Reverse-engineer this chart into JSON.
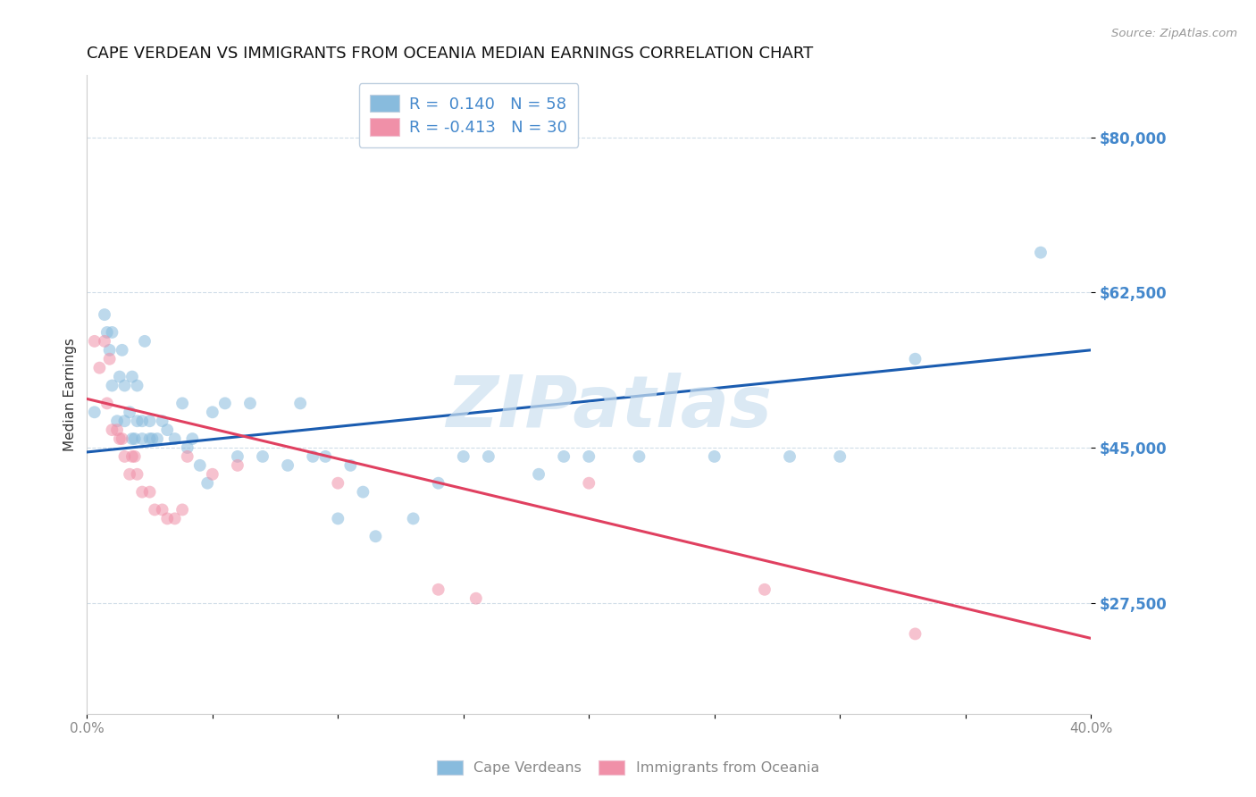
{
  "title": "CAPE VERDEAN VS IMMIGRANTS FROM OCEANIA MEDIAN EARNINGS CORRELATION CHART",
  "source_text": "Source: ZipAtlas.com",
  "ylabel": "Median Earnings",
  "x_min": 0.0,
  "x_max": 0.4,
  "y_min": 15000,
  "y_max": 87000,
  "yticks": [
    27500,
    45000,
    62500,
    80000
  ],
  "ytick_labels": [
    "$27,500",
    "$45,000",
    "$62,500",
    "$80,000"
  ],
  "xticks": [
    0.0,
    0.05,
    0.1,
    0.15,
    0.2,
    0.25,
    0.3,
    0.35,
    0.4
  ],
  "xtick_labels": [
    "0.0%",
    "",
    "",
    "",
    "",
    "",
    "",
    "",
    "40.0%"
  ],
  "legend1_label1": "R =  0.140   N = 58",
  "legend1_label2": "R = -0.413   N = 30",
  "blue_scatter_x": [
    0.003,
    0.007,
    0.008,
    0.009,
    0.01,
    0.01,
    0.012,
    0.013,
    0.014,
    0.015,
    0.015,
    0.017,
    0.018,
    0.018,
    0.019,
    0.02,
    0.02,
    0.022,
    0.022,
    0.023,
    0.025,
    0.025,
    0.026,
    0.028,
    0.03,
    0.032,
    0.035,
    0.038,
    0.04,
    0.042,
    0.045,
    0.048,
    0.05,
    0.055,
    0.06,
    0.065,
    0.07,
    0.08,
    0.085,
    0.09,
    0.095,
    0.1,
    0.105,
    0.11,
    0.115,
    0.13,
    0.14,
    0.15,
    0.16,
    0.18,
    0.19,
    0.2,
    0.22,
    0.25,
    0.28,
    0.3,
    0.33,
    0.38
  ],
  "blue_scatter_y": [
    49000,
    60000,
    58000,
    56000,
    52000,
    58000,
    48000,
    53000,
    56000,
    52000,
    48000,
    49000,
    46000,
    53000,
    46000,
    52000,
    48000,
    46000,
    48000,
    57000,
    46000,
    48000,
    46000,
    46000,
    48000,
    47000,
    46000,
    50000,
    45000,
    46000,
    43000,
    41000,
    49000,
    50000,
    44000,
    50000,
    44000,
    43000,
    50000,
    44000,
    44000,
    37000,
    43000,
    40000,
    35000,
    37000,
    41000,
    44000,
    44000,
    42000,
    44000,
    44000,
    44000,
    44000,
    44000,
    44000,
    55000,
    67000
  ],
  "pink_scatter_x": [
    0.003,
    0.005,
    0.007,
    0.008,
    0.009,
    0.01,
    0.012,
    0.013,
    0.014,
    0.015,
    0.017,
    0.018,
    0.019,
    0.02,
    0.022,
    0.025,
    0.027,
    0.03,
    0.032,
    0.035,
    0.038,
    0.04,
    0.05,
    0.06,
    0.1,
    0.14,
    0.155,
    0.2,
    0.27,
    0.33
  ],
  "pink_scatter_y": [
    57000,
    54000,
    57000,
    50000,
    55000,
    47000,
    47000,
    46000,
    46000,
    44000,
    42000,
    44000,
    44000,
    42000,
    40000,
    40000,
    38000,
    38000,
    37000,
    37000,
    38000,
    44000,
    42000,
    43000,
    41000,
    29000,
    28000,
    41000,
    29000,
    24000
  ],
  "blue_line_x": [
    0.0,
    0.4
  ],
  "blue_line_y": [
    44500,
    56000
  ],
  "pink_line_x": [
    0.0,
    0.4
  ],
  "pink_line_y": [
    50500,
    23500
  ],
  "scatter_alpha": 0.55,
  "scatter_size": 100,
  "blue_scatter_color": "#88bbdd",
  "pink_scatter_color": "#f090a8",
  "blue_line_color": "#1a5cb0",
  "pink_line_color": "#e04060",
  "title_color": "#111111",
  "ylabel_color": "#333333",
  "ytick_color": "#4488cc",
  "xtick_color": "#888888",
  "grid_color": "#d0dde8",
  "background_color": "#ffffff",
  "watermark_text": "ZIPatlas",
  "watermark_color": "#cce0f0",
  "source_color": "#999999",
  "legend_box_color": "#e8f0f8",
  "legend_edge_color": "#c0d0e0",
  "legend_text_color_r": "#4488cc",
  "legend_text_color_n": "#4488cc",
  "bottom_legend_color": "#888888"
}
